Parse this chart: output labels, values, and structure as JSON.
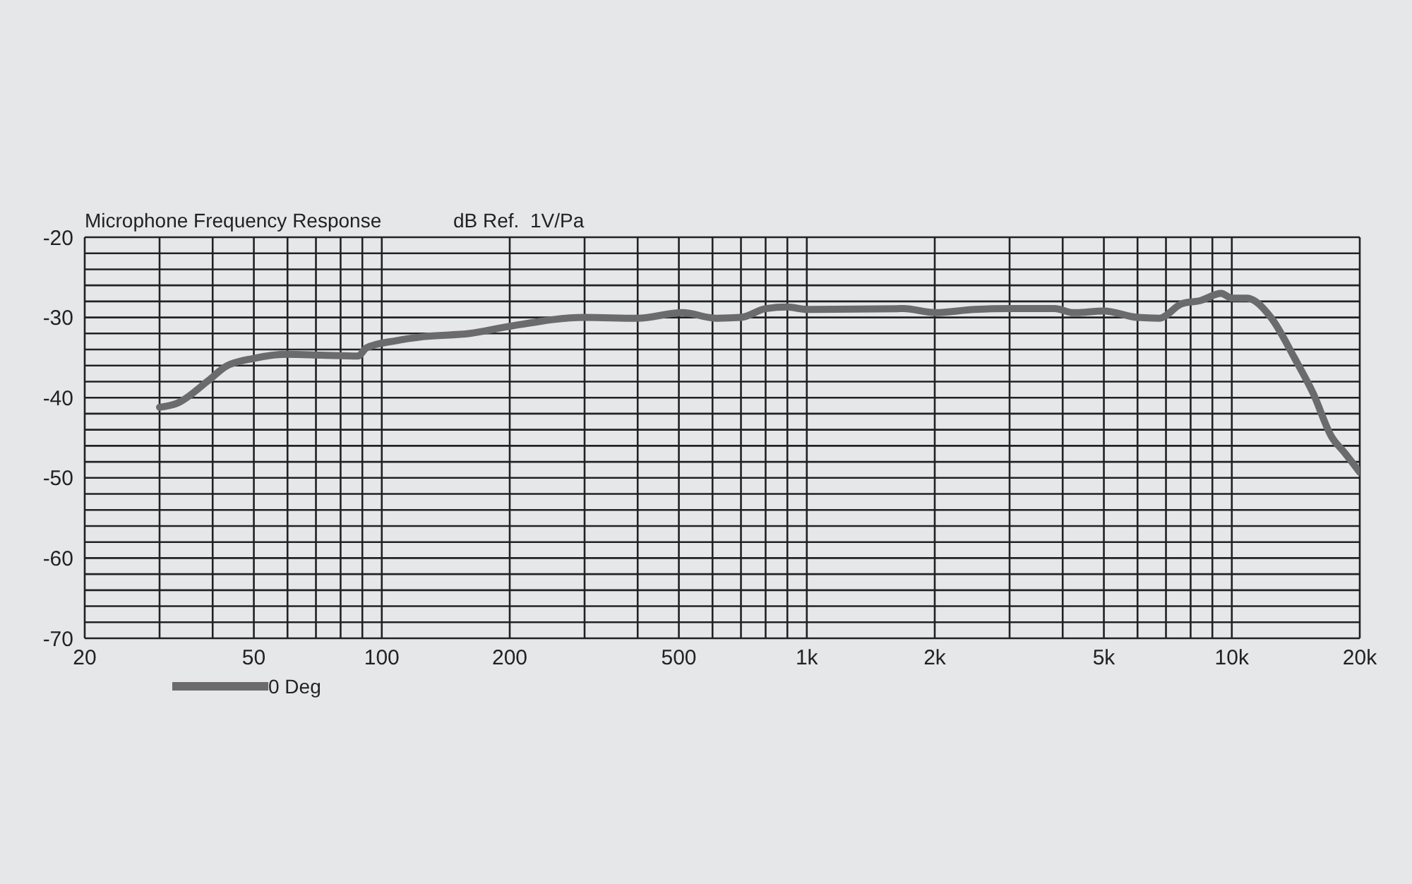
{
  "chart_data": {
    "type": "line",
    "title": "Microphone Frequency Response",
    "ylabel": "dB Ref.  1V/Pa",
    "log": "x",
    "grid": true,
    "legend": "bottom left",
    "marker": "none",
    "line_style": "solid",
    "xlim": [
      20,
      20000
    ],
    "xticks": [
      20,
      {
        "value": 30,
        "label": null
      },
      {
        "value": 40,
        "label": null
      },
      50,
      {
        "value": 60,
        "label": null
      },
      {
        "value": 70,
        "label": null
      },
      {
        "value": 80,
        "label": null
      },
      {
        "value": 90,
        "label": null
      },
      100,
      200,
      {
        "value": 300,
        "label": null
      },
      {
        "value": 400,
        "label": null
      },
      500,
      {
        "value": 600,
        "label": null
      },
      {
        "value": 700,
        "label": null
      },
      {
        "value": 800,
        "label": null
      },
      {
        "value": 900,
        "label": null
      },
      {
        "value": 1000,
        "label": "1k"
      },
      {
        "value": 2000,
        "label": "2k"
      },
      {
        "value": 3000,
        "label": null
      },
      {
        "value": 4000,
        "label": null
      },
      {
        "value": 5000,
        "label": "5k"
      },
      {
        "value": 6000,
        "label": null
      },
      {
        "value": 7000,
        "label": null
      },
      {
        "value": 8000,
        "label": null
      },
      {
        "value": 9000,
        "label": null
      },
      {
        "value": 10000,
        "label": "10k"
      },
      {
        "value": 20000,
        "label": "20k"
      }
    ],
    "ylim": [
      -70,
      -20
    ],
    "yticks": [
      -70,
      {
        "value": -68,
        "label": null
      },
      {
        "value": -66,
        "label": null
      },
      {
        "value": -64,
        "label": null
      },
      {
        "value": -62,
        "label": null
      },
      -60,
      {
        "value": -58,
        "label": null
      },
      {
        "value": -56,
        "label": null
      },
      {
        "value": -54,
        "label": null
      },
      {
        "value": -52,
        "label": null
      },
      -50,
      {
        "value": -48,
        "label": null
      },
      {
        "value": -46,
        "label": null
      },
      {
        "value": -44,
        "label": null
      },
      {
        "value": -42,
        "label": null
      },
      -40,
      {
        "value": -38,
        "label": null
      },
      {
        "value": -36,
        "label": null
      },
      {
        "value": -34,
        "label": null
      },
      {
        "value": -32,
        "label": null
      },
      -30,
      {
        "value": -28,
        "label": null
      },
      {
        "value": -26,
        "label": null
      },
      {
        "value": -24,
        "label": null
      },
      {
        "value": -22,
        "label": null
      },
      -20
    ],
    "series": [
      {
        "name": "0 Deg",
        "color": "#6b6b6d",
        "x": [
          30,
          33,
          39,
          43,
          50,
          60,
          72,
          88,
          92,
          108,
          125,
          161,
          200,
          300,
          400,
          510,
          611,
          700,
          800,
          900,
          1000,
          1690,
          2000,
          2480,
          3000,
          3830,
          4240,
          5000,
          6000,
          6750,
          7620,
          8430,
          9440,
          10000,
          10840,
          12360,
          14060,
          15520,
          17180,
          18380,
          20000
        ],
        "values": [
          -41.2,
          -40.7,
          -37.9,
          -36.1,
          -35.1,
          -34.6,
          -34.7,
          -34.8,
          -33.8,
          -32.9,
          -32.4,
          -32.0,
          -31.1,
          -30.0,
          -30.1,
          -29.4,
          -30.1,
          -30.0,
          -28.9,
          -28.7,
          -29.0,
          -28.9,
          -29.4,
          -29.0,
          -28.9,
          -28.9,
          -29.4,
          -29.2,
          -30.0,
          -30.1,
          -28.3,
          -27.9,
          -27.0,
          -27.6,
          -27.6,
          -30.0,
          -35.1,
          -39.4,
          -44.9,
          -46.8,
          -49.3
        ]
      }
    ]
  }
}
